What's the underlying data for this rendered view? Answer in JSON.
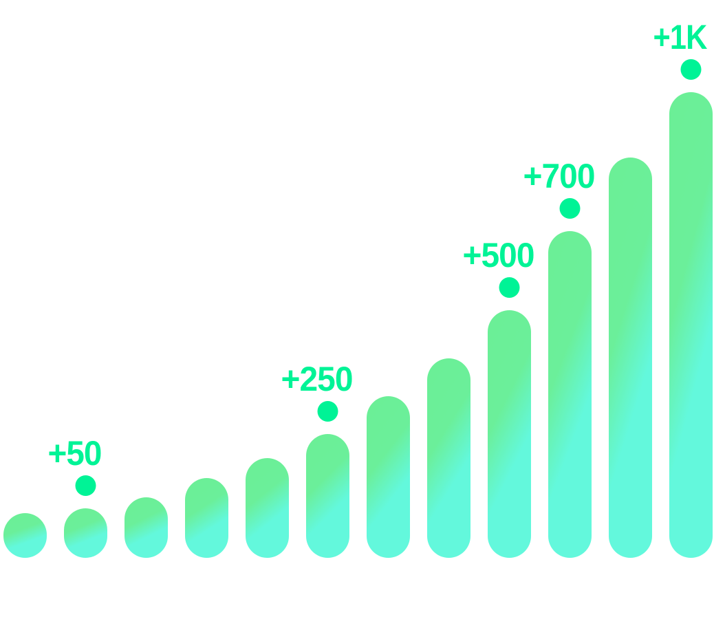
{
  "chart_data": {
    "type": "bar",
    "title": "",
    "xlabel": "",
    "ylabel": "",
    "values": [
      65,
      72,
      88,
      116,
      145,
      180,
      235,
      290,
      360,
      475,
      582,
      677
    ],
    "ylim": [
      0,
      760
    ],
    "grid": false,
    "legend": "none",
    "annotations": [
      {
        "bar_index": 1,
        "text": "+50"
      },
      {
        "bar_index": 5,
        "text": "+250"
      },
      {
        "bar_index": 8,
        "text": "+500"
      },
      {
        "bar_index": 9,
        "text": "+700"
      },
      {
        "bar_index": 11,
        "text": "+1K"
      }
    ]
  },
  "colors": {
    "bar_top": "#6bef96",
    "bar_bottom": "#63f8dc",
    "accent": "#00f396",
    "label": "#00f396"
  }
}
